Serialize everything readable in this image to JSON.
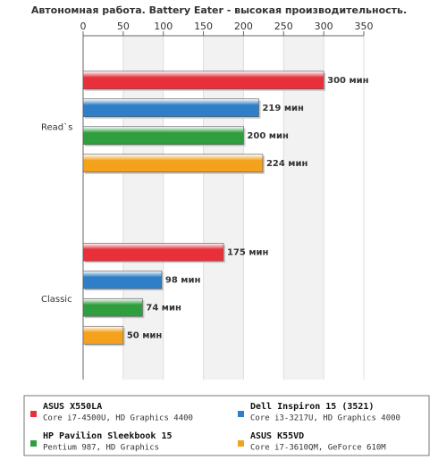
{
  "chart_data": {
    "type": "hbar",
    "title": "Автономная работа. Battery Eater - высокая производительность.",
    "categories": [
      "Read`s",
      "Classic"
    ],
    "series": [
      {
        "name": "ASUS X550LA",
        "description": "Core i7-4500U, HD Graphics 4400",
        "color": "#e8303a",
        "values": [
          300,
          175
        ],
        "value_labels": [
          "300 мин",
          "175 мин"
        ]
      },
      {
        "name": "Dell Inspiron 15 (3521)",
        "description": "Core i3-3217U, HD Graphics 4000",
        "color": "#2f7fc8",
        "values": [
          219,
          98
        ],
        "value_labels": [
          "219 мин",
          "98 мин"
        ]
      },
      {
        "name": "HP Pavilion Sleekbook 15",
        "description": "Pentium 987, HD Graphics",
        "color": "#2e9e3e",
        "values": [
          200,
          74
        ],
        "value_labels": [
          "200 мин",
          "74 мин"
        ]
      },
      {
        "name": "ASUS K55VD",
        "description": "Core i7-3610QM, GeForce 610M",
        "color": "#f4a21c",
        "values": [
          224,
          50
        ],
        "value_labels": [
          "224 мин",
          "50 мин"
        ]
      }
    ],
    "xlim": [
      0,
      350
    ],
    "xticks": [
      0,
      50,
      100,
      150,
      200,
      250,
      300,
      350
    ],
    "grid": true
  }
}
